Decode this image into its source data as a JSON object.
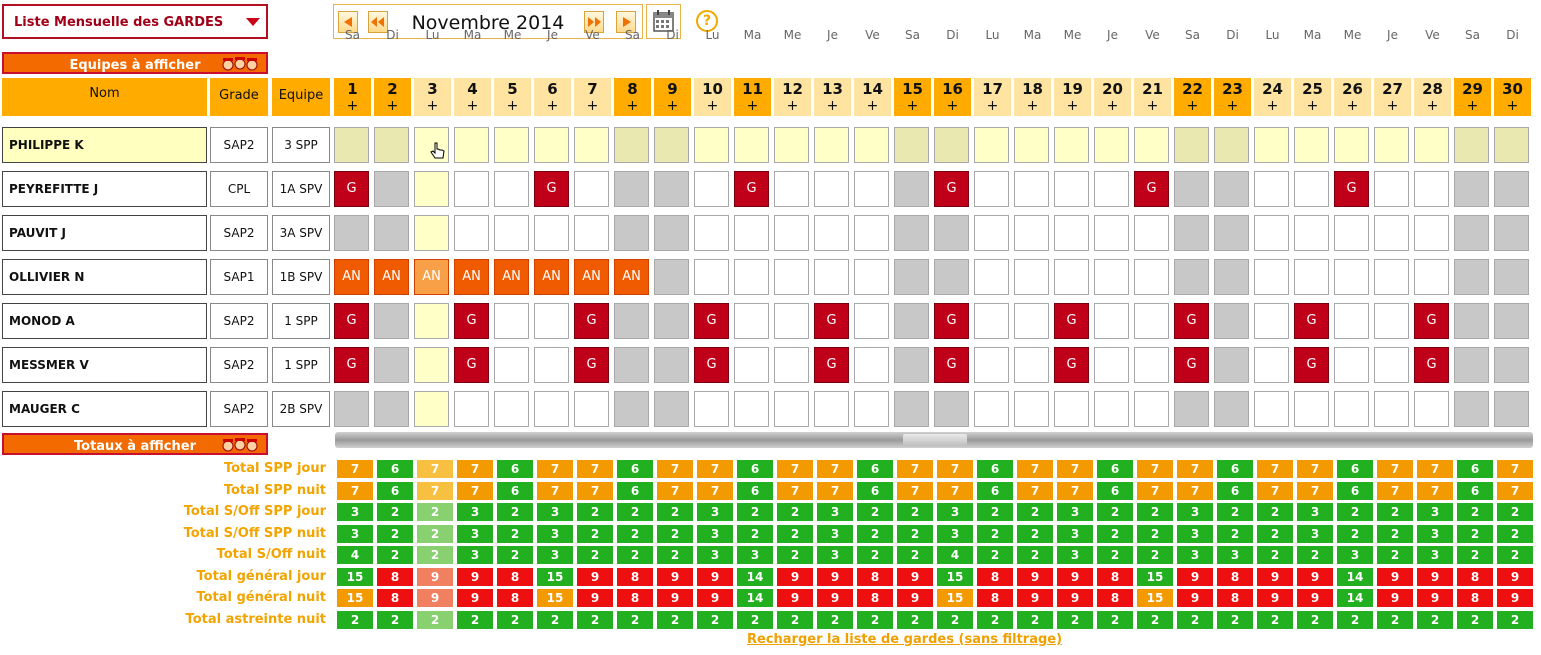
{
  "view_select": {
    "label": "Liste Mensuelle des GARDES"
  },
  "month_nav": {
    "label": "Novembre 2014"
  },
  "help_icon": "?",
  "teams_bar": {
    "label": "Equipes à afficher"
  },
  "totals_bar": {
    "label": "Totaux à afficher"
  },
  "headers": {
    "name": "Nom",
    "grade": "Grade",
    "team": "Equipe"
  },
  "days": [
    {
      "dow": "Sa",
      "num": "1",
      "we": true
    },
    {
      "dow": "Di",
      "num": "2",
      "we": true
    },
    {
      "dow": "Lu",
      "num": "3",
      "we": false
    },
    {
      "dow": "Ma",
      "num": "4",
      "we": false
    },
    {
      "dow": "Me",
      "num": "5",
      "we": false
    },
    {
      "dow": "Je",
      "num": "6",
      "we": false
    },
    {
      "dow": "Ve",
      "num": "7",
      "we": false
    },
    {
      "dow": "Sa",
      "num": "8",
      "we": true
    },
    {
      "dow": "Di",
      "num": "9",
      "we": true
    },
    {
      "dow": "Lu",
      "num": "10",
      "we": false
    },
    {
      "dow": "Ma",
      "num": "11",
      "we": true
    },
    {
      "dow": "Me",
      "num": "12",
      "we": false
    },
    {
      "dow": "Je",
      "num": "13",
      "we": false
    },
    {
      "dow": "Ve",
      "num": "14",
      "we": false
    },
    {
      "dow": "Sa",
      "num": "15",
      "we": true
    },
    {
      "dow": "Di",
      "num": "16",
      "we": true
    },
    {
      "dow": "Lu",
      "num": "17",
      "we": false
    },
    {
      "dow": "Ma",
      "num": "18",
      "we": false
    },
    {
      "dow": "Me",
      "num": "19",
      "we": false
    },
    {
      "dow": "Je",
      "num": "20",
      "we": false
    },
    {
      "dow": "Ve",
      "num": "21",
      "we": false
    },
    {
      "dow": "Sa",
      "num": "22",
      "we": true
    },
    {
      "dow": "Di",
      "num": "23",
      "we": true
    },
    {
      "dow": "Lu",
      "num": "24",
      "we": false
    },
    {
      "dow": "Ma",
      "num": "25",
      "we": false
    },
    {
      "dow": "Me",
      "num": "26",
      "we": false
    },
    {
      "dow": "Je",
      "num": "27",
      "we": false
    },
    {
      "dow": "Ve",
      "num": "28",
      "we": false
    },
    {
      "dow": "Sa",
      "num": "29",
      "we": true
    },
    {
      "dow": "Di",
      "num": "30",
      "we": true
    }
  ],
  "plus_label": "+",
  "staff": [
    {
      "name": "PHILIPPE K",
      "grade": "SAP2",
      "team": "3 SPP",
      "selected": true,
      "cells": [
        "",
        "",
        "",
        "",
        "",
        "",
        "",
        "",
        "",
        "",
        "",
        "",
        "",
        "",
        "",
        "",
        "",
        "",
        "",
        "",
        "",
        "",
        "",
        "",
        "",
        "",
        "",
        "",
        "",
        ""
      ]
    },
    {
      "name": "PEYREFITTE J",
      "grade": "CPL",
      "team": "1A SPV",
      "selected": false,
      "cells": [
        "G",
        "",
        "",
        "",
        "",
        "G",
        "",
        "",
        "",
        "",
        "G",
        "",
        "",
        "",
        "",
        "G",
        "",
        "",
        "",
        "",
        "G",
        "",
        "",
        "",
        "",
        "G",
        "",
        "",
        "",
        ""
      ]
    },
    {
      "name": "PAUVIT J",
      "grade": "SAP2",
      "team": "3A SPV",
      "selected": false,
      "cells": [
        "",
        "",
        "",
        "",
        "",
        "",
        "",
        "",
        "",
        "",
        "",
        "",
        "",
        "",
        "",
        "",
        "",
        "",
        "",
        "",
        "",
        "",
        "",
        "",
        "",
        "",
        "",
        "",
        "",
        ""
      ]
    },
    {
      "name": "OLLIVIER N",
      "grade": "SAP1",
      "team": "1B SPV",
      "selected": false,
      "cells": [
        "AN",
        "AN",
        "AN",
        "AN",
        "AN",
        "AN",
        "AN",
        "AN",
        "",
        "",
        "",
        "",
        "",
        "",
        "",
        "",
        "",
        "",
        "",
        "",
        "",
        "",
        "",
        "",
        "",
        "",
        "",
        "",
        "",
        ""
      ]
    },
    {
      "name": "MONOD A",
      "grade": "SAP2",
      "team": "1 SPP",
      "selected": false,
      "cells": [
        "G",
        "",
        "",
        "G",
        "",
        "",
        "G",
        "",
        "",
        "G",
        "",
        "",
        "G",
        "",
        "",
        "G",
        "",
        "",
        "G",
        "",
        "",
        "G",
        "",
        "",
        "G",
        "",
        "",
        "G",
        "",
        ""
      ]
    },
    {
      "name": "MESSMER V",
      "grade": "SAP2",
      "team": "1 SPP",
      "selected": false,
      "cells": [
        "G",
        "",
        "",
        "G",
        "",
        "",
        "G",
        "",
        "",
        "G",
        "",
        "",
        "G",
        "",
        "",
        "G",
        "",
        "",
        "G",
        "",
        "",
        "G",
        "",
        "",
        "G",
        "",
        "",
        "G",
        "",
        ""
      ]
    },
    {
      "name": "MAUGER C",
      "grade": "SAP2",
      "team": "2B SPV",
      "selected": false,
      "cells": [
        "",
        "",
        "",
        "",
        "",
        "",
        "",
        "",
        "",
        "",
        "",
        "",
        "",
        "",
        "",
        "",
        "",
        "",
        "",
        "",
        "",
        "",
        "",
        "",
        "",
        "",
        "",
        "",
        "",
        ""
      ]
    }
  ],
  "totals": [
    {
      "label": "Total SPP jour",
      "values": [
        "7",
        "6",
        "7",
        "7",
        "6",
        "7",
        "7",
        "6",
        "7",
        "7",
        "6",
        "7",
        "7",
        "6",
        "7",
        "7",
        "6",
        "7",
        "7",
        "6",
        "7",
        "7",
        "6",
        "7",
        "7",
        "6",
        "7",
        "7",
        "6",
        "7"
      ]
    },
    {
      "label": "Total SPP nuit",
      "values": [
        "7",
        "6",
        "7",
        "7",
        "6",
        "7",
        "7",
        "6",
        "7",
        "7",
        "6",
        "7",
        "7",
        "6",
        "7",
        "7",
        "6",
        "7",
        "7",
        "6",
        "7",
        "7",
        "6",
        "7",
        "7",
        "6",
        "7",
        "7",
        "6",
        "7"
      ]
    },
    {
      "label": "Total S/Off SPP jour",
      "values": [
        "3",
        "2",
        "2",
        "3",
        "2",
        "3",
        "2",
        "2",
        "2",
        "3",
        "2",
        "2",
        "3",
        "2",
        "2",
        "3",
        "2",
        "2",
        "3",
        "2",
        "2",
        "3",
        "2",
        "2",
        "3",
        "2",
        "2",
        "3",
        "2",
        "2"
      ]
    },
    {
      "label": "Total S/Off SPP nuit",
      "values": [
        "3",
        "2",
        "2",
        "3",
        "2",
        "3",
        "2",
        "2",
        "2",
        "3",
        "2",
        "2",
        "3",
        "2",
        "2",
        "3",
        "2",
        "2",
        "3",
        "2",
        "2",
        "3",
        "2",
        "2",
        "3",
        "2",
        "2",
        "3",
        "2",
        "2"
      ]
    },
    {
      "label": "Total S/Off nuit",
      "values": [
        "4",
        "2",
        "2",
        "3",
        "2",
        "3",
        "2",
        "2",
        "2",
        "3",
        "3",
        "2",
        "3",
        "2",
        "2",
        "4",
        "2",
        "2",
        "3",
        "2",
        "2",
        "3",
        "3",
        "2",
        "2",
        "3",
        "2",
        "3",
        "2",
        "2"
      ]
    },
    {
      "label": "Total général jour",
      "values": [
        "15",
        "8",
        "9",
        "9",
        "8",
        "15",
        "9",
        "8",
        "9",
        "9",
        "14",
        "9",
        "9",
        "8",
        "9",
        "15",
        "8",
        "9",
        "9",
        "8",
        "15",
        "9",
        "8",
        "9",
        "9",
        "14",
        "9",
        "9",
        "8",
        "9"
      ]
    },
    {
      "label": "Total général nuit",
      "values": [
        "15",
        "8",
        "9",
        "9",
        "8",
        "15",
        "9",
        "8",
        "9",
        "9",
        "14",
        "9",
        "9",
        "8",
        "9",
        "15",
        "8",
        "9",
        "9",
        "8",
        "15",
        "9",
        "8",
        "9",
        "9",
        "14",
        "9",
        "9",
        "8",
        "9"
      ]
    },
    {
      "label": "Total astreinte nuit",
      "values": [
        "2",
        "2",
        "2",
        "2",
        "2",
        "2",
        "2",
        "2",
        "2",
        "2",
        "2",
        "2",
        "2",
        "2",
        "2",
        "2",
        "2",
        "2",
        "2",
        "2",
        "2",
        "2",
        "2",
        "2",
        "2",
        "2",
        "2",
        "2",
        "2",
        "2"
      ]
    }
  ],
  "reload_link": "Recharger la liste de gardes (sans filtrage)",
  "colors": {
    "accent_orange": "#f26a00",
    "header_orange": "#ffab00",
    "header_light": "#ffe3a0",
    "guard_red": "#c00018",
    "an_orange": "#f05a00",
    "weekend_gray": "#c8c8c8",
    "today_yellow": "#ffffc8",
    "total_green": "#22b020",
    "total_orange": "#f29a00",
    "total_red": "#ee1010"
  }
}
